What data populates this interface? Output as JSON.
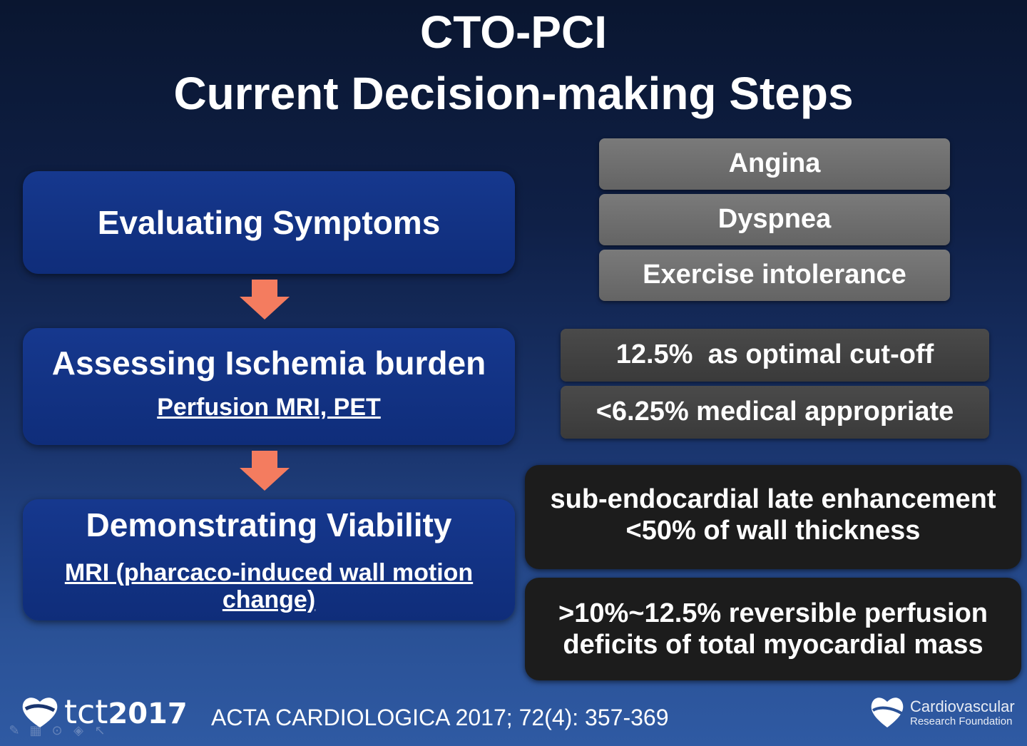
{
  "title": {
    "line1": "CTO-PCI",
    "line2": "Current Decision-making Steps"
  },
  "steps": [
    {
      "title": "Evaluating Symptoms",
      "subtitle": ""
    },
    {
      "title": "Assessing Ischemia burden",
      "subtitle": "Perfusion MRI, PET"
    },
    {
      "title": "Demonstrating Viability",
      "subtitle": "MRI (pharcaco-induced wall motion change)"
    }
  ],
  "symptoms": [
    "Angina",
    "Dyspnea",
    "Exercise intolerance"
  ],
  "ischemia": [
    "12.5%  as optimal cut-off",
    "<6.25% medical appropriate"
  ],
  "viability": [
    {
      "line1": "sub-endocardial late enhancement",
      "line2": "<50% of wall thickness"
    },
    {
      "line1": ">10%~12.5% reversible perfusion",
      "line2": "deficits of total myocardial mass"
    }
  ],
  "footer": {
    "logo_text": "tct",
    "logo_year": "2017",
    "citation": "ACTA CARDIOLOGICA 2017; 72(4): 357-369",
    "org_name": "Cardiovascular",
    "org_sub": "Research Foundation"
  },
  "colors": {
    "step_box": "#16388e",
    "arrow": "#f47c5f",
    "symptom_box": "#6e6e6e",
    "ischemia_box": "#404040",
    "viability_box": "#1c1c1c"
  },
  "icons": [
    "pen-icon",
    "slides-icon",
    "zoom-icon",
    "pointer-icon",
    "cursor-icon"
  ]
}
